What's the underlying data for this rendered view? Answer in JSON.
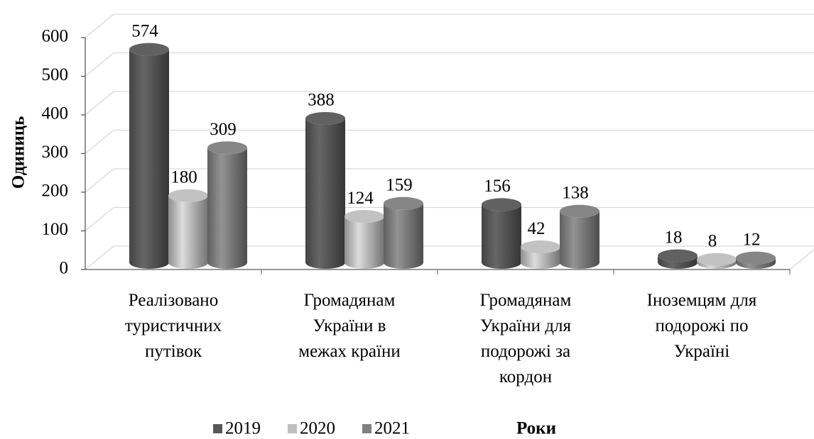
{
  "chart_data": {
    "type": "bar3d",
    "y_label": "Одиниць",
    "x_label": "Роки",
    "categories": [
      "Реалізовано\nтуристичних\nпутівок",
      "Громадянам\nУкраїни в\nмежах країни",
      "Громадянам\nУкраїни для\nподорожі за\nкордон",
      "Іноземцям для\nподорожі по\nУкраїні"
    ],
    "series": [
      {
        "name": "2019",
        "color": "#595959",
        "values": [
          574,
          388,
          156,
          18
        ]
      },
      {
        "name": "2020",
        "color": "#bfbfbf",
        "values": [
          180,
          124,
          42,
          8
        ]
      },
      {
        "name": "2021",
        "color": "#808080",
        "values": [
          309,
          159,
          138,
          12
        ]
      }
    ],
    "ylim": [
      0,
      600
    ],
    "yticks": [
      0,
      100,
      200,
      300,
      400,
      500,
      600
    ],
    "grid": true,
    "legend": "bottom"
  }
}
